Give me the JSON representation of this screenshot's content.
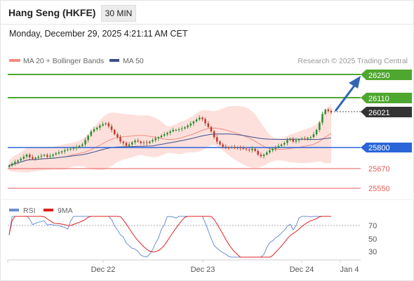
{
  "header": {
    "title": "Hang Seng (HKFE)",
    "timeframe": "30 MIN",
    "datetime": "Monday, December 29, 2025 4:21:11 AM CET"
  },
  "legend": {
    "ma20_label": "MA 20 + Bollinger Bands",
    "ma50_label": "MA 50",
    "credit": "Research © 2025 Trading Central",
    "rsi_label": "RSI",
    "rsi_ma_label": "9MA"
  },
  "colors": {
    "green_level": "#4ea72e",
    "blue_level": "#2a66d9",
    "red_level": "#e85a5a",
    "current_price": "#333333",
    "arrow": "#2f66b3",
    "band_fill": "#fde0dc",
    "ma20": "#f28c82",
    "ma50": "#3a4f8e",
    "candle_up": "#2e8b2e",
    "candle_down": "#c0392b",
    "rsi": "#6b8fd4",
    "rsi_ma": "#e02020"
  },
  "chart_data": {
    "type": "candlestick",
    "title": "Hang Seng (HKFE)",
    "timeframe": "30 MIN",
    "x_ticks": [
      "Dec 22",
      "Dec 23",
      "Dec 24",
      "Jan 4"
    ],
    "y_ticks": [],
    "ylim": [
      25450,
      26330
    ],
    "levels": [
      {
        "value": 26250,
        "label": "26250",
        "kind": "resistance-target"
      },
      {
        "value": 26110,
        "label": "26110",
        "kind": "resistance"
      },
      {
        "value": 26021,
        "label": "26021",
        "kind": "current-price"
      },
      {
        "value": 25800,
        "label": "25800",
        "kind": "pivot"
      },
      {
        "value": 25670,
        "label": "25670",
        "kind": "support"
      },
      {
        "value": 25550,
        "label": "25550",
        "kind": "support"
      }
    ],
    "close_series": [
      25655,
      25668,
      25680,
      25690,
      25702,
      25716,
      25730,
      25712,
      25700,
      25708,
      25716,
      25722,
      25728,
      25715,
      25722,
      25730,
      25738,
      25745,
      25752,
      25760,
      25765,
      25770,
      25775,
      25782,
      25790,
      25800,
      25830,
      25860,
      25890,
      25905,
      25915,
      25930,
      25940,
      25945,
      25925,
      25900,
      25870,
      25850,
      25820,
      25810,
      25790,
      25800,
      25815,
      25826,
      25820,
      25810,
      25815,
      25810,
      25820,
      25830,
      25842,
      25850,
      25860,
      25870,
      25880,
      25890,
      25900,
      25900,
      25905,
      25910,
      25918,
      25930,
      25944,
      25958,
      25972,
      25985,
      25975,
      25945,
      25920,
      25890,
      25850,
      25820,
      25800,
      25785,
      25780,
      25778,
      25782,
      25778,
      25780,
      25775,
      25770,
      25765,
      25760,
      25770,
      25755,
      25730,
      25720,
      25730,
      25745,
      25760,
      25770,
      25780,
      25790,
      25800,
      25810,
      25830,
      25840,
      25820,
      25828,
      25835,
      25840,
      25838,
      25845,
      25850,
      25870,
      25900,
      25950,
      26010,
      26040,
      26030,
      26021
    ],
    "bollinger": {
      "upper_max": 25990,
      "lower_min": 25600
    },
    "rsi": {
      "levels": [
        70,
        50,
        30
      ],
      "last": 70
    }
  }
}
